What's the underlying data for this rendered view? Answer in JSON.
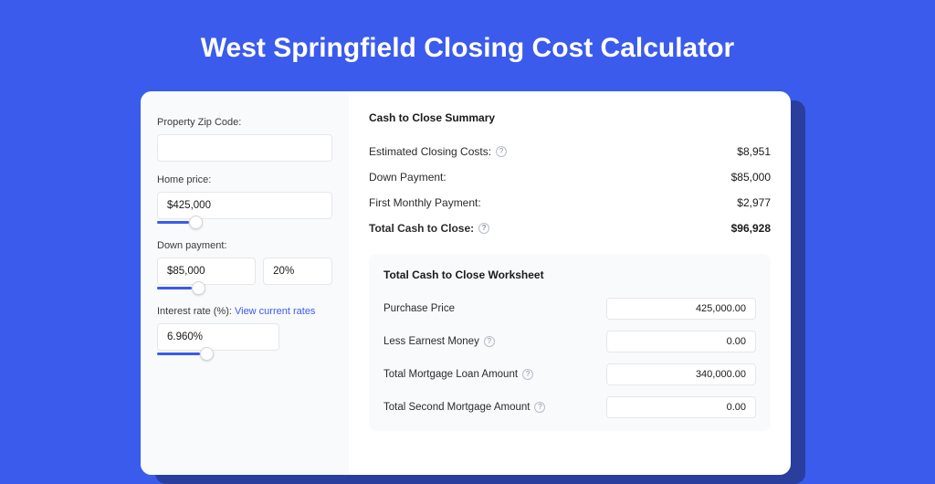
{
  "colors": {
    "page_bg": "#3B5BEC",
    "shadow": "#2A3E9E",
    "card_bg": "#ffffff",
    "panel_bg": "#f9fafc",
    "border": "#e5e7eb",
    "text": "#1a1a1a",
    "label": "#3a3a3a",
    "link": "#3B5BEC",
    "accent": "#3B5BEC",
    "help_border": "#b7bcc5",
    "help_text": "#8a8f99"
  },
  "title": "West Springfield Closing Cost Calculator",
  "form": {
    "zip": {
      "label": "Property Zip Code:",
      "value": ""
    },
    "home_price": {
      "label": "Home price:",
      "value": "$425,000",
      "slider_percent": 18
    },
    "down_payment": {
      "label": "Down payment:",
      "value": "$85,000",
      "percent_value": "20%",
      "slider_percent": 20
    },
    "interest": {
      "label": "Interest rate (%):",
      "link_text": "View current rates",
      "value": "6.960%",
      "slider_percent": 35
    }
  },
  "summary": {
    "title": "Cash to Close Summary",
    "rows": [
      {
        "label": "Estimated Closing Costs:",
        "value": "$8,951",
        "help": true,
        "bold": false
      },
      {
        "label": "Down Payment:",
        "value": "$85,000",
        "help": false,
        "bold": false
      },
      {
        "label": "First Monthly Payment:",
        "value": "$2,977",
        "help": false,
        "bold": false
      },
      {
        "label": "Total Cash to Close:",
        "value": "$96,928",
        "help": true,
        "bold": true
      }
    ]
  },
  "worksheet": {
    "title": "Total Cash to Close Worksheet",
    "rows": [
      {
        "label": "Purchase Price",
        "value": "425,000.00",
        "help": false
      },
      {
        "label": "Less Earnest Money",
        "value": "0.00",
        "help": true
      },
      {
        "label": "Total Mortgage Loan Amount",
        "value": "340,000.00",
        "help": true
      },
      {
        "label": "Total Second Mortgage Amount",
        "value": "0.00",
        "help": true
      }
    ]
  }
}
